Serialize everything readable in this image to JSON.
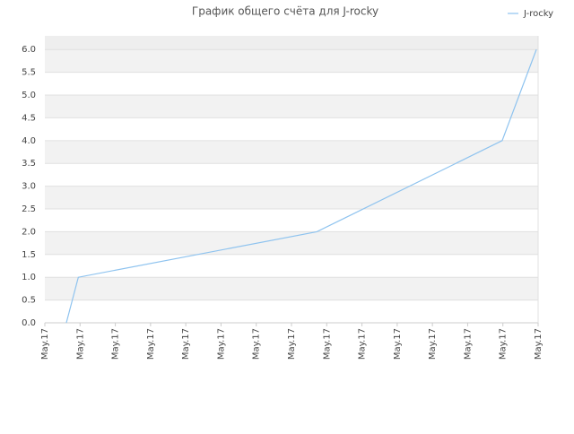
{
  "chart_data": {
    "type": "line",
    "title": "График общего счёта для J-rocky",
    "legend": "top-right",
    "grid": true,
    "xlim": [
      0,
      14
    ],
    "xticks": [
      {
        "value": 0,
        "label": "May.17"
      },
      {
        "value": 1,
        "label": "May.17"
      },
      {
        "value": 2,
        "label": "May.17"
      },
      {
        "value": 3,
        "label": "May.17"
      },
      {
        "value": 4,
        "label": "May.17"
      },
      {
        "value": 5,
        "label": "May.17"
      },
      {
        "value": 6,
        "label": "May.17"
      },
      {
        "value": 7,
        "label": "May.17"
      },
      {
        "value": 8,
        "label": "May.17"
      },
      {
        "value": 9,
        "label": "May.17"
      },
      {
        "value": 10,
        "label": "May.17"
      },
      {
        "value": 11,
        "label": "May.17"
      },
      {
        "value": 12,
        "label": "May.17"
      },
      {
        "value": 13,
        "label": "May.17"
      },
      {
        "value": 14,
        "label": "May.17"
      }
    ],
    "ylim": [
      0,
      6.3
    ],
    "yticks": [
      {
        "value": 0,
        "label": "0.0"
      },
      0.5,
      {
        "value": 1,
        "label": "1.0"
      },
      1.5,
      {
        "value": 2,
        "label": "2.0"
      },
      2.5,
      {
        "value": 3,
        "label": "3.0"
      },
      3.5,
      {
        "value": 4,
        "label": "4.0"
      },
      4.5,
      {
        "value": 5,
        "label": "5.0"
      },
      5.5,
      {
        "value": 6,
        "label": "6.0"
      }
    ],
    "series": [
      {
        "name": "J-rocky",
        "color": "#8ec3ef",
        "x": [
          0.61,
          0.95,
          7.72,
          12.98,
          13.95
        ],
        "values": [
          0,
          1,
          2,
          4,
          6
        ]
      }
    ]
  }
}
